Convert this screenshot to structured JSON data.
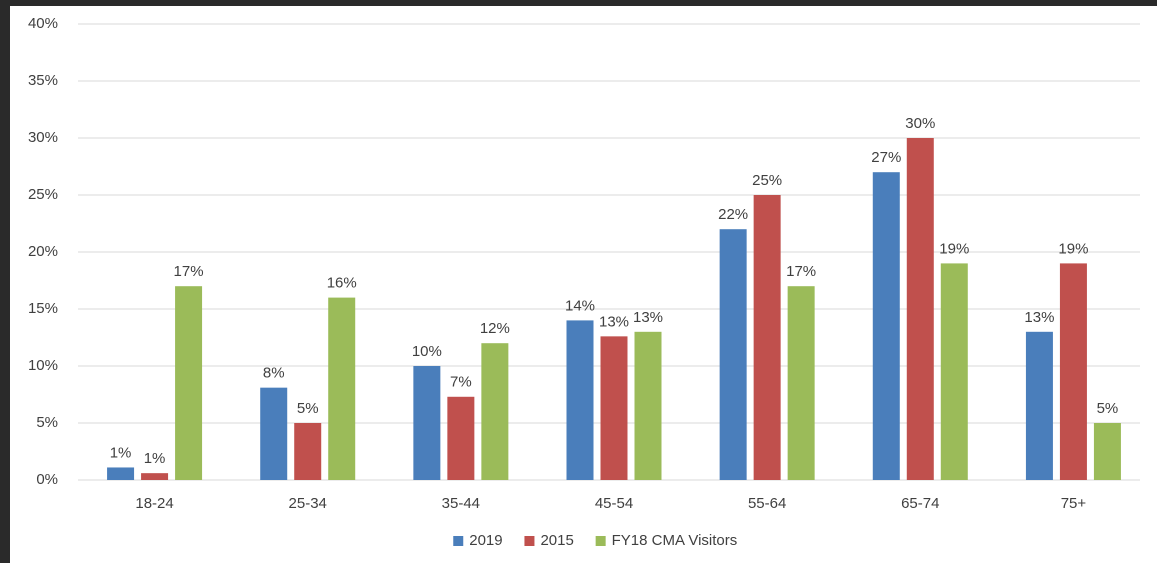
{
  "chart_data": {
    "type": "bar",
    "categories": [
      "18-24",
      "25-34",
      "35-44",
      "45-54",
      "55-64",
      "65-74",
      "75+"
    ],
    "series": [
      {
        "name": "2019",
        "color": "#4a7ebb",
        "values": [
          1.1,
          8.1,
          10,
          14,
          22,
          27,
          13
        ],
        "value_labels": [
          "1%",
          "8%",
          "10%",
          "14%",
          "22%",
          "27%",
          "13%"
        ]
      },
      {
        "name": "2015",
        "color": "#c0504d",
        "values": [
          0.6,
          5,
          7.3,
          12.6,
          25,
          30,
          19
        ],
        "value_labels": [
          "1%",
          "5%",
          "7%",
          "13%",
          "25%",
          "30%",
          "19%"
        ]
      },
      {
        "name": "FY18 CMA Visitors",
        "color": "#9bbb59",
        "values": [
          17,
          16,
          12,
          13,
          17,
          19,
          5
        ],
        "value_labels": [
          "17%",
          "16%",
          "12%",
          "13%",
          "17%",
          "19%",
          "5%"
        ]
      }
    ],
    "ylim": [
      0,
      40
    ],
    "yticks": [
      {
        "value": 0,
        "label": "0%"
      },
      {
        "value": 5,
        "label": "5%"
      },
      {
        "value": 10,
        "label": "10%"
      },
      {
        "value": 15,
        "label": "15%"
      },
      {
        "value": 20,
        "label": "20%"
      },
      {
        "value": 25,
        "label": "25%"
      },
      {
        "value": 30,
        "label": "30%"
      },
      {
        "value": 35,
        "label": "35%"
      },
      {
        "value": 40,
        "label": "40%"
      }
    ],
    "grid": true,
    "legend": "bottom"
  }
}
